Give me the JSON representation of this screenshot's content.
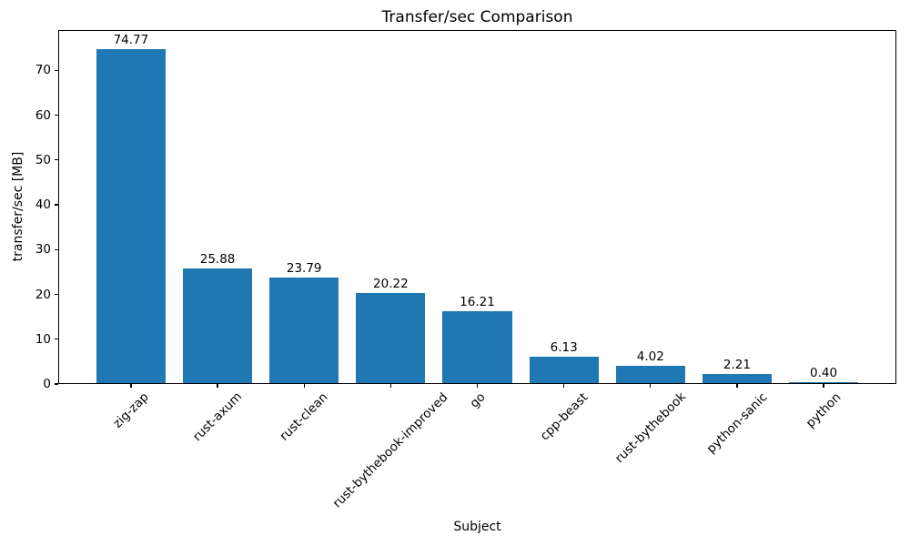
{
  "chart_data": {
    "type": "bar",
    "title": "Transfer/sec Comparison",
    "xlabel": "Subject",
    "ylabel": "transfer/sec [MB]",
    "categories": [
      "zig-zap",
      "rust-axum",
      "rust-clean",
      "rust-bythebook-improved",
      "go",
      "cpp-beast",
      "rust-bythebook",
      "python-sanic",
      "python"
    ],
    "values": [
      74.77,
      25.88,
      23.79,
      20.22,
      16.21,
      6.13,
      4.02,
      2.21,
      0.4
    ],
    "bar_value_labels": [
      "74.77",
      "25.88",
      "23.79",
      "20.22",
      "16.21",
      "6.13",
      "4.02",
      "2.21",
      "0.40"
    ],
    "yticks": [
      0,
      10,
      20,
      30,
      40,
      50,
      60,
      70
    ],
    "ytick_labels": [
      "0",
      "10",
      "20",
      "30",
      "40",
      "50",
      "60",
      "70"
    ],
    "ylim": [
      0,
      79
    ],
    "bar_color": "#1f77b4",
    "axis_color": "#000000",
    "text_color": "#000000",
    "grid": false,
    "legend_visible": false,
    "x_tick_rotation_deg": 45
  }
}
